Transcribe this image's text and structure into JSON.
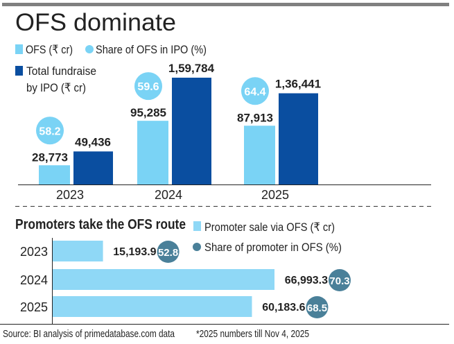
{
  "colors": {
    "ofs": "#7ad3f5",
    "total": "#0a4ea0",
    "share_ofs": "#7ad3f5",
    "promoter": "#8fd8f6",
    "promoter_share": "#4a8099",
    "rule": "#808080"
  },
  "chart_data": [
    {
      "type": "bar",
      "title": "OFS dominate",
      "categories": [
        "2023",
        "2024",
        "2025"
      ],
      "series": [
        {
          "name": "OFS (₹ cr)",
          "values": [
            28773,
            95285,
            87913
          ],
          "labels": [
            "28,773",
            "95,285",
            "87,913"
          ]
        },
        {
          "name": "Total fundraise by IPO (₹ cr)",
          "legend_lines": [
            "Total fundraise",
            "by IPO (₹ cr)"
          ],
          "values": [
            49436,
            159784,
            136441
          ],
          "labels": [
            "49,436",
            "1,59,784",
            "1,36,441"
          ]
        },
        {
          "name": "Share of OFS in IPO (%)",
          "type": "bubble",
          "values": [
            58.2,
            59.6,
            64.4
          ],
          "labels": [
            "58.2",
            "59.6",
            "64.4"
          ]
        }
      ],
      "ylim": [
        0,
        165000
      ],
      "grid": false
    },
    {
      "type": "bar",
      "orientation": "horizontal",
      "title": "Promoters take the OFS route",
      "categories": [
        "2023",
        "2024",
        "2025"
      ],
      "series": [
        {
          "name": "Promoter sale via OFS (₹ cr)",
          "values": [
            15193.9,
            66993.3,
            60183.6
          ],
          "labels": [
            "15,193.9",
            "66,993.3",
            "60,183.6"
          ]
        },
        {
          "name": "Share of promoter in OFS (%)",
          "type": "bubble",
          "values": [
            52.8,
            70.3,
            68.5
          ],
          "labels": [
            "52.8",
            "70.3",
            "68.5"
          ]
        }
      ],
      "xlim": [
        0,
        70000
      ],
      "grid": false
    }
  ],
  "footer": {
    "source": "Source: BI analysis of primedatabase.com data",
    "note": "*2025 numbers till Nov 4, 2025"
  }
}
